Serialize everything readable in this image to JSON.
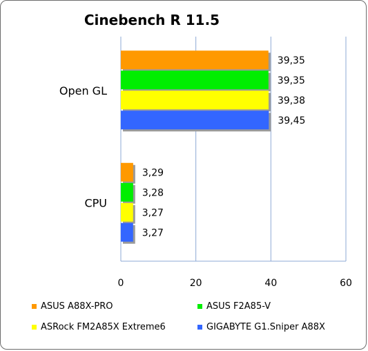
{
  "chart_data": {
    "type": "bar",
    "orientation": "horizontal",
    "title": "Cinebench R 11.5",
    "categories": [
      "Open GL",
      "CPU"
    ],
    "series": [
      {
        "name": "ASUS A88X-PRO",
        "color": "#ff9900",
        "values": [
          39.35,
          3.29
        ],
        "labels": [
          "39,35",
          "3,29"
        ]
      },
      {
        "name": "ASUS F2A85-V",
        "color": "#00ee00",
        "values": [
          39.35,
          3.28
        ],
        "labels": [
          "39,35",
          "3,28"
        ]
      },
      {
        "name": "ASRock FM2A85X Extreme6",
        "color": "#ffff00",
        "values": [
          39.38,
          3.27
        ],
        "labels": [
          "39,38",
          "3,27"
        ]
      },
      {
        "name": "GIGABYTE G1.Sniper A88X",
        "color": "#3366ff",
        "values": [
          39.45,
          3.27
        ],
        "labels": [
          "39,45",
          "3,27"
        ]
      }
    ],
    "xlim": [
      0,
      60
    ],
    "xticks": [
      "0",
      "20",
      "40",
      "60"
    ],
    "grid": true,
    "legend_position": "bottom"
  }
}
